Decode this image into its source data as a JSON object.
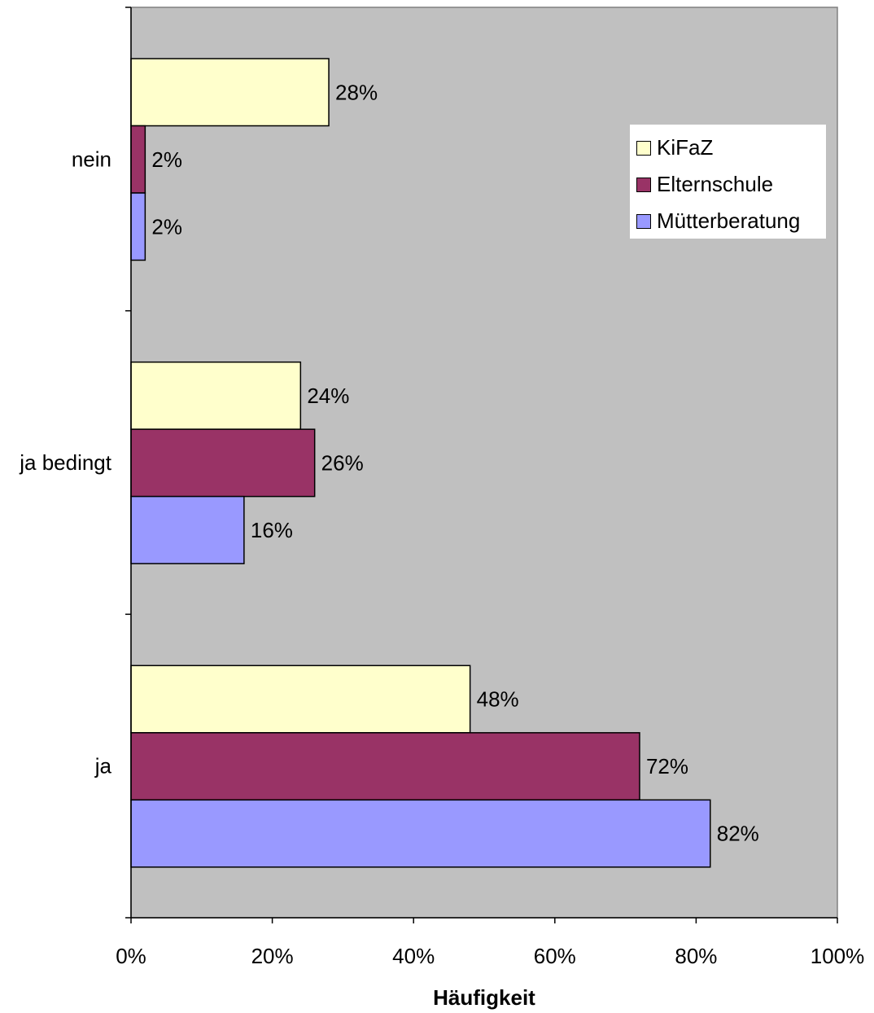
{
  "chart_data": {
    "type": "bar",
    "orientation": "horizontal",
    "categories": [
      "ja",
      "ja bedingt",
      "nein"
    ],
    "series": [
      {
        "name": "KiFaZ",
        "color": "#ffffcc",
        "values": [
          48,
          24,
          28
        ]
      },
      {
        "name": "Elternschule",
        "color": "#993366",
        "values": [
          72,
          26,
          2
        ]
      },
      {
        "name": "Mütterberatung",
        "color": "#9999ff",
        "values": [
          82,
          16,
          2
        ]
      }
    ],
    "xlabel": "Häufigkeit",
    "xlim": [
      0,
      100
    ],
    "xticks": [
      "0%",
      "20%",
      "40%",
      "60%",
      "80%",
      "100%"
    ],
    "value_suffix": "%",
    "plot_background": "#c0c0c0",
    "grid": false,
    "legend_position": "top-right"
  }
}
